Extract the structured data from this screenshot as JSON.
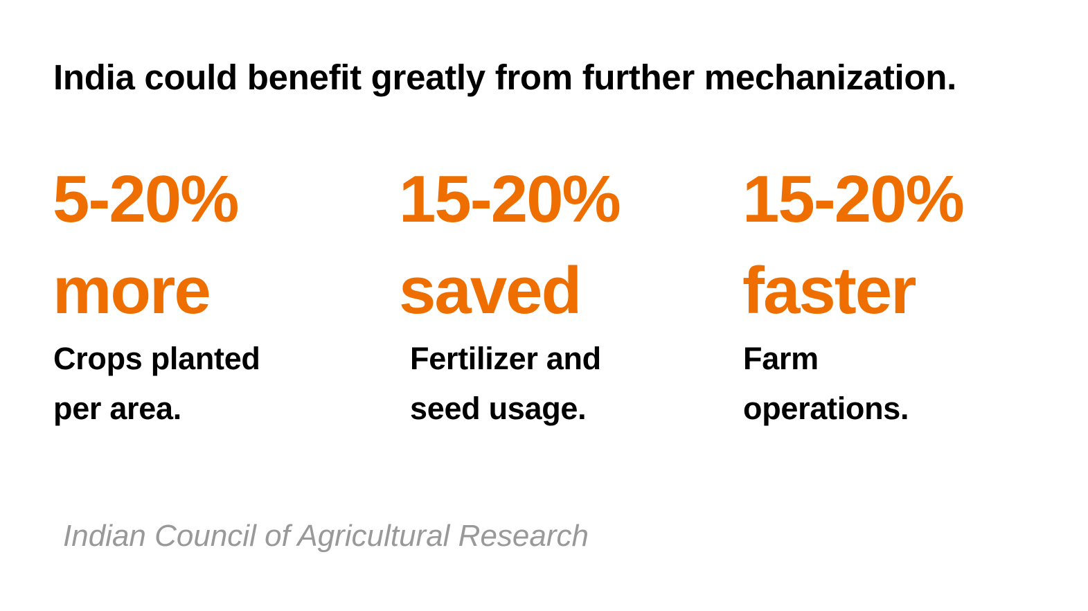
{
  "headline": "India could benefit greatly from further mechanization.",
  "colors": {
    "accent": "#EE6F00",
    "text": "#000000",
    "source": "#999999",
    "background": "#ffffff"
  },
  "stats": [
    {
      "figure_line1": "5-20%",
      "figure_line2": "more",
      "desc_line1": "Crops planted",
      "desc_line2": "per area."
    },
    {
      "figure_line1": "15-20%",
      "figure_line2": "saved",
      "desc_line1": "Fertilizer and",
      "desc_line2": "seed usage."
    },
    {
      "figure_line1": "15-20%",
      "figure_line2": "faster",
      "desc_line1": "Farm",
      "desc_line2": "operations."
    }
  ],
  "source": "Indian Council of Agricultural Research"
}
